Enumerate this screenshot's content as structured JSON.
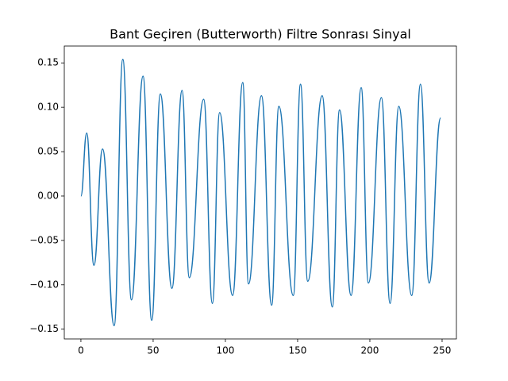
{
  "chart_data": {
    "type": "line",
    "title": "Bant Geçiren (Butterworth) Filtre Sonrası Sinyal",
    "x": [
      0,
      4,
      9,
      15,
      23,
      29,
      35,
      43,
      49,
      55,
      63,
      70,
      75,
      85,
      91,
      96,
      105,
      112,
      116,
      125,
      132,
      137,
      147,
      152,
      157,
      167,
      174,
      179,
      187,
      194,
      199,
      208,
      214,
      220,
      229,
      235,
      241,
      249
    ],
    "series": [
      {
        "color": "#1f77b4",
        "values": [
          0.0,
          0.071,
          -0.078,
          0.053,
          -0.146,
          0.154,
          -0.117,
          0.135,
          -0.14,
          0.115,
          -0.104,
          0.119,
          -0.092,
          0.109,
          -0.121,
          0.094,
          -0.112,
          0.128,
          -0.099,
          0.113,
          -0.123,
          0.101,
          -0.112,
          0.126,
          -0.096,
          0.113,
          -0.125,
          0.097,
          -0.112,
          0.122,
          -0.098,
          0.111,
          -0.121,
          0.101,
          -0.112,
          0.126,
          -0.098,
          0.088
        ]
      }
    ],
    "xlim": [
      -11.5,
      259.9
    ],
    "ylim": [
      -0.161,
      0.169
    ],
    "xticks": [
      0,
      50,
      100,
      150,
      200,
      250
    ],
    "yticks": [
      {
        "value": -0.15,
        "label": "−0.15"
      },
      {
        "value": -0.1,
        "label": "−0.10"
      },
      {
        "value": -0.05,
        "label": "−0.05"
      },
      {
        "value": 0,
        "label": "0.00"
      },
      {
        "value": 0.05,
        "label": "0.05"
      },
      {
        "value": 0.1,
        "label": "0.10"
      },
      {
        "value": 0.15,
        "label": "0.15"
      }
    ]
  }
}
